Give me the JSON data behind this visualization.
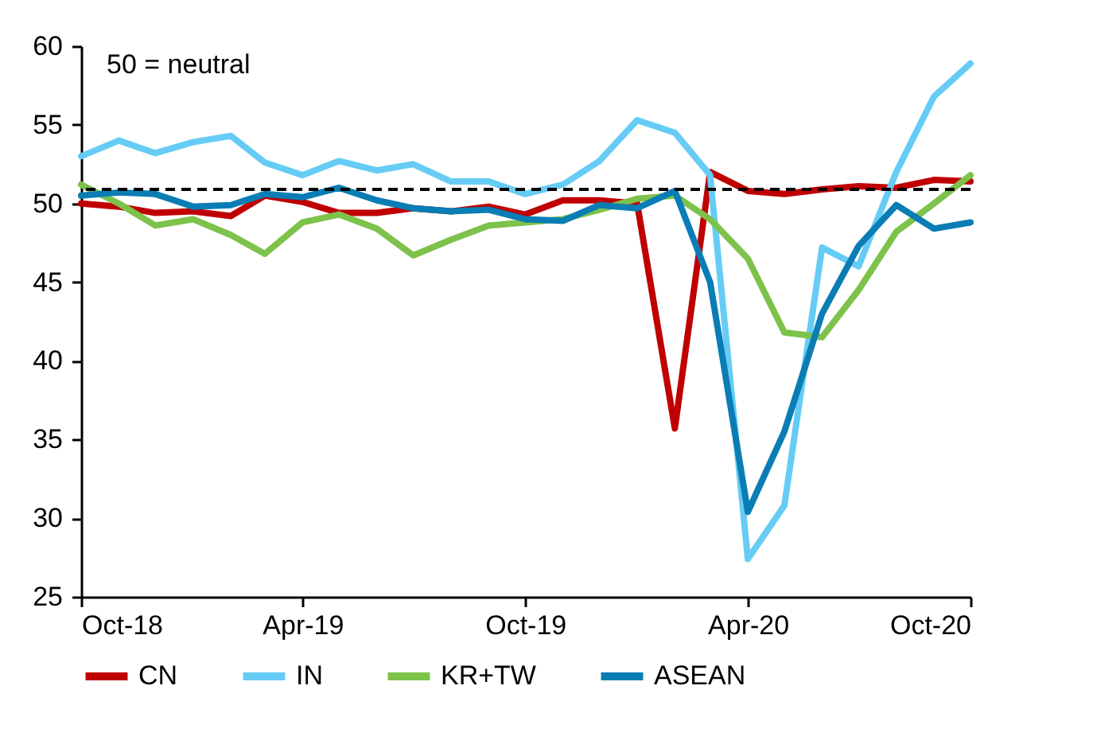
{
  "chart_data": {
    "type": "line",
    "annotations": [
      "50 = neutral"
    ],
    "x": [
      "2018-10",
      "2018-11",
      "2018-12",
      "2019-01",
      "2019-02",
      "2019-03",
      "2019-04",
      "2019-05",
      "2019-06",
      "2019-07",
      "2019-08",
      "2019-09",
      "2019-10",
      "2019-11",
      "2019-12",
      "2020-01",
      "2020-02",
      "2020-03",
      "2020-04",
      "2020-05",
      "2020-06",
      "2020-07",
      "2020-08",
      "2020-09",
      "2020-10"
    ],
    "series": [
      {
        "name": "CN",
        "color": "#c00000",
        "values": [
          50.0,
          49.8,
          49.4,
          49.5,
          49.2,
          50.5,
          50.1,
          49.4,
          49.4,
          49.7,
          49.5,
          49.8,
          49.3,
          50.2,
          50.2,
          50.0,
          35.7,
          52.0,
          50.8,
          50.6,
          50.9,
          51.1,
          51.0,
          51.5,
          51.4
        ]
      },
      {
        "name": "IN",
        "color": "#66ccf5",
        "values": [
          53.0,
          54.0,
          53.2,
          53.9,
          54.3,
          52.6,
          51.8,
          52.7,
          52.1,
          52.5,
          51.4,
          51.4,
          50.6,
          51.2,
          52.7,
          55.3,
          54.5,
          51.8,
          27.4,
          30.8,
          47.2,
          46.0,
          52.0,
          56.8,
          58.9
        ]
      },
      {
        "name": "KR+TW",
        "color": "#7dc24b",
        "values": [
          51.2,
          50.0,
          48.6,
          49.0,
          48.0,
          46.8,
          48.8,
          49.3,
          48.4,
          46.7,
          47.7,
          48.6,
          48.8,
          49.0,
          49.6,
          50.3,
          50.5,
          49.0,
          46.5,
          41.8,
          41.5,
          44.5,
          48.2,
          50.0,
          51.8
        ]
      },
      {
        "name": "ASEAN",
        "color": "#0a7db5",
        "values": [
          50.5,
          50.7,
          50.6,
          49.8,
          49.9,
          50.6,
          50.4,
          51.0,
          50.2,
          49.7,
          49.5,
          49.6,
          49.0,
          48.9,
          49.9,
          49.7,
          50.8,
          45.0,
          30.4,
          35.5,
          43.0,
          47.3,
          49.9,
          48.4,
          48.8
        ]
      }
    ],
    "xlim": [
      "2018-10",
      "2020-10"
    ],
    "xticks": [
      {
        "value": "2018-10",
        "label": "Oct-18"
      },
      {
        "value": "2019-04",
        "label": "Apr-19"
      },
      {
        "value": "2019-10",
        "label": "Oct-19"
      },
      {
        "value": "2020-04",
        "label": "Apr-20"
      },
      {
        "value": "2020-10",
        "label": "Oct-20"
      }
    ],
    "ylim": [
      25,
      60
    ],
    "yticks": [
      25,
      30,
      35,
      40,
      45,
      50,
      55,
      60
    ],
    "ref_lines": [
      {
        "axis": "y",
        "value": 50.9,
        "color": "#000000",
        "line_style": "dashed"
      }
    ],
    "grid": false,
    "legend": "bottom",
    "line_style": "solid"
  }
}
